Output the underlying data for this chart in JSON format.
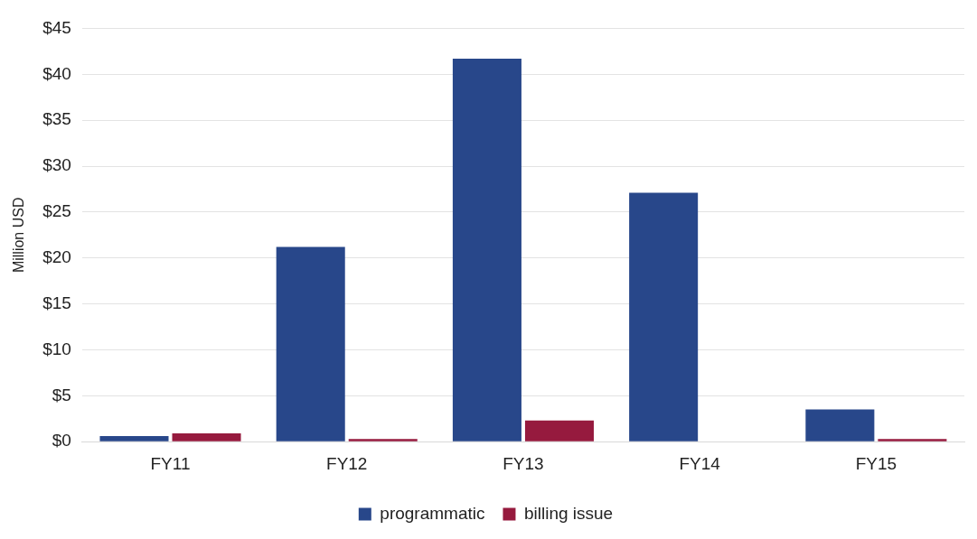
{
  "chart_data": {
    "type": "bar",
    "ylabel": "Million USD",
    "categories": [
      "FY11",
      "FY12",
      "FY13",
      "FY14",
      "FY15"
    ],
    "series": [
      {
        "name": "programmatic",
        "color": "#28478a",
        "values": [
          0.6,
          21.2,
          41.7,
          27.1,
          3.5
        ]
      },
      {
        "name": "billing issue",
        "color": "#961a3e",
        "values": [
          0.9,
          0.3,
          2.3,
          0,
          0.3
        ]
      }
    ],
    "ylim": [
      0,
      45
    ],
    "yticks": [
      {
        "value": 0,
        "label": "$0"
      },
      {
        "value": 5,
        "label": "$5"
      },
      {
        "value": 10,
        "label": "$10"
      },
      {
        "value": 15,
        "label": "$15"
      },
      {
        "value": 20,
        "label": "$20"
      },
      {
        "value": 25,
        "label": "$25"
      },
      {
        "value": 30,
        "label": "$30"
      },
      {
        "value": 35,
        "label": "$35"
      },
      {
        "value": 40,
        "label": "$40"
      },
      {
        "value": 45,
        "label": "$45"
      }
    ],
    "grid": "y",
    "legend": "bottom"
  }
}
